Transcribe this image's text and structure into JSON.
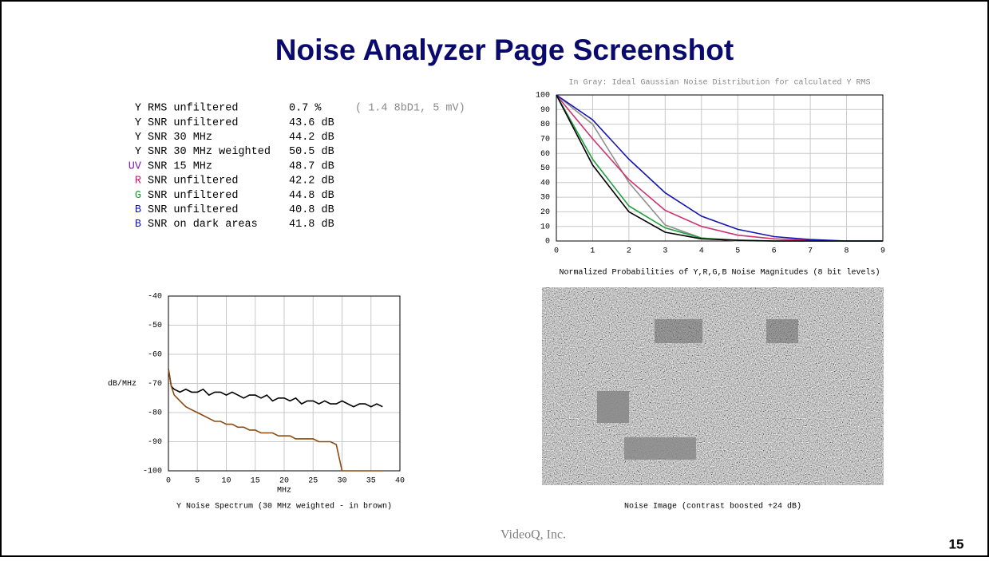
{
  "slide": {
    "title": "Noise Analyzer Page Screenshot",
    "footer": "VideoQ, Inc.",
    "page_number": "15"
  },
  "measurements": {
    "rows": [
      {
        "channel": "Y",
        "channel_color": "#000000",
        "label": "RMS unfiltered",
        "value": "0.7 %",
        "note": "( 1.4 8bD1,  5 mV)"
      },
      {
        "channel": "Y",
        "channel_color": "#000000",
        "label": "SNR unfiltered",
        "value": "43.6 dB"
      },
      {
        "channel": "Y",
        "channel_color": "#000000",
        "label": "SNR 30 MHz",
        "value": "44.2 dB"
      },
      {
        "channel": "Y",
        "channel_color": "#000000",
        "label": "SNR 30 MHz weighted",
        "value": "50.5 dB"
      },
      {
        "channel": "UV",
        "channel_color": "#7a1fa2",
        "label": "SNR 15 MHz",
        "value": "48.7 dB"
      },
      {
        "channel": "R",
        "channel_color": "#d01060",
        "label": "SNR unfiltered",
        "value": "42.2 dB"
      },
      {
        "channel": "G",
        "channel_color": "#1a9a2a",
        "label": "SNR unfiltered",
        "value": "44.8 dB"
      },
      {
        "channel": "B",
        "channel_color": "#1010c0",
        "label": "SNR unfiltered",
        "value": "40.8 dB"
      },
      {
        "channel": "B",
        "channel_color": "#1010c0",
        "label": "SNR on dark areas",
        "value": "41.8 dB"
      }
    ]
  },
  "chart_data": [
    {
      "type": "line",
      "subtitle": "In Gray: Ideal Gaussian Noise Distribution for calculated Y RMS",
      "x_label": "Normalized Probabilities of Y,R,G,B Noise Magnitudes (8 bit levels)",
      "x": [
        0,
        1,
        2,
        3,
        4,
        5,
        6,
        7,
        8,
        9
      ],
      "xlim": [
        0,
        9
      ],
      "xticks": [
        0,
        1,
        2,
        3,
        4,
        5,
        6,
        7,
        8,
        9
      ],
      "ylim": [
        0,
        100
      ],
      "yticks": [
        0,
        10,
        20,
        30,
        40,
        50,
        60,
        70,
        80,
        90,
        100
      ],
      "grid": true,
      "series": [
        {
          "color": "#909090",
          "values": [
            100,
            80,
            40,
            11,
            2,
            0,
            0,
            0,
            0,
            0
          ]
        },
        {
          "color": "#d03070",
          "values": [
            100,
            70,
            42,
            21,
            10,
            4,
            1.5,
            0.5,
            0,
            0
          ]
        },
        {
          "color": "#1515b0",
          "values": [
            100,
            83,
            56,
            33,
            17,
            8,
            3,
            1,
            0,
            0
          ]
        },
        {
          "color": "#20a040",
          "values": [
            100,
            56,
            24,
            9,
            2,
            0.5,
            0,
            0,
            0,
            0
          ]
        },
        {
          "color": "#000000",
          "values": [
            100,
            52,
            20,
            6,
            1.5,
            0.5,
            0,
            0,
            0,
            0
          ]
        }
      ]
    },
    {
      "type": "line",
      "title": "Y Noise Spectrum (30 MHz weighted - in brown)",
      "x_label": "MHz",
      "y_label": "dB/MHz",
      "x": [
        0,
        0.5,
        1,
        2,
        3,
        4,
        5,
        6,
        7,
        8,
        9,
        10,
        11,
        12,
        13,
        14,
        15,
        16,
        17,
        18,
        19,
        20,
        21,
        22,
        23,
        24,
        25,
        26,
        27,
        28,
        29,
        30,
        31,
        32,
        33,
        34,
        35,
        36,
        37
      ],
      "xlim": [
        0,
        40
      ],
      "xticks": [
        0,
        5,
        10,
        15,
        20,
        25,
        30,
        35,
        40
      ],
      "ylim": [
        -100,
        -40
      ],
      "yticks": [
        -100,
        -90,
        -80,
        -70,
        -60,
        -50,
        -40
      ],
      "grid": true,
      "series": [
        {
          "color": "#000000",
          "values": [
            -65,
            -71,
            -72,
            -73,
            -72,
            -73,
            -73,
            -72,
            -74,
            -73,
            -73,
            -74,
            -73,
            -74,
            -75,
            -74,
            -74,
            -75,
            -74,
            -76,
            -75,
            -75,
            -76,
            -75,
            -77,
            -76,
            -76,
            -77,
            -76,
            -77,
            -77,
            -76,
            -77,
            -78,
            -77,
            -77,
            -78,
            -77,
            -78
          ]
        },
        {
          "color": "#8b4a10",
          "values": [
            -65,
            -71,
            -74,
            -76,
            -78,
            -79,
            -80,
            -81,
            -82,
            -83,
            -83,
            -84,
            -84,
            -85,
            -85,
            -86,
            -86,
            -87,
            -87,
            -87,
            -88,
            -88,
            -88,
            -89,
            -89,
            -89,
            -89,
            -90,
            -90,
            -90,
            -91,
            -100,
            -100,
            -100,
            -100,
            -100,
            -100,
            -100,
            -100
          ]
        }
      ]
    }
  ],
  "noise_image": {
    "caption": "Noise Image (contrast boosted +24 dB)"
  }
}
